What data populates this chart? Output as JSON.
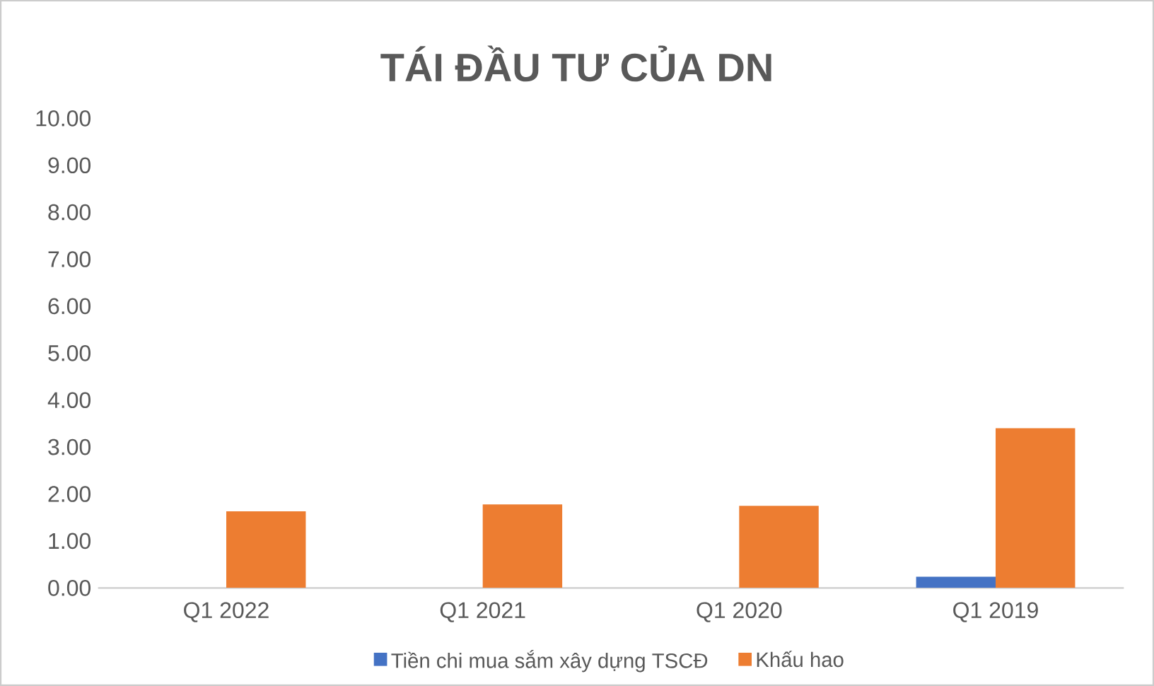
{
  "chart_data": {
    "type": "bar",
    "title": "TÁI ĐẦU TƯ CỦA DN",
    "categories": [
      "Q1 2022",
      "Q1 2021",
      "Q1 2020",
      "Q1 2019"
    ],
    "series": [
      {
        "name": "Tiền chi mua sắm xây dựng TSCĐ",
        "color": "#4472c4",
        "values": [
          0,
          0,
          0,
          0.24
        ]
      },
      {
        "name": "Khấu hao",
        "color": "#ed7d31",
        "values": [
          1.63,
          1.78,
          1.75,
          3.4
        ]
      }
    ],
    "ylim": [
      0,
      10
    ],
    "yticks": [
      {
        "value": 0,
        "label": "0.00"
      },
      {
        "value": 1,
        "label": "1.00"
      },
      {
        "value": 2,
        "label": "2.00"
      },
      {
        "value": 3,
        "label": "3.00"
      },
      {
        "value": 4,
        "label": "4.00"
      },
      {
        "value": 5,
        "label": "5.00"
      },
      {
        "value": 6,
        "label": "6.00"
      },
      {
        "value": 7,
        "label": "7.00"
      },
      {
        "value": 8,
        "label": "8.00"
      },
      {
        "value": 9,
        "label": "9.00"
      },
      {
        "value": 10,
        "label": "10.00"
      }
    ],
    "grid": false,
    "legend": "bottom"
  }
}
